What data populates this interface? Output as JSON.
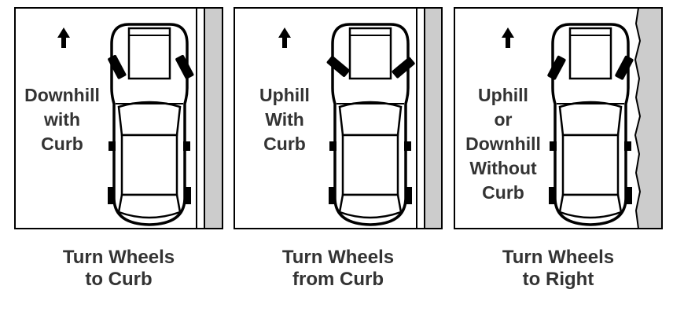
{
  "panels": [
    {
      "inner_lines": [
        "Downhill",
        "with",
        "Curb"
      ],
      "caption_lines": [
        "Turn Wheels",
        "to Curb"
      ],
      "wheel_direction": "toward-curb",
      "curb": "curb"
    },
    {
      "inner_lines": [
        "Uphill",
        "With",
        "Curb"
      ],
      "caption_lines": [
        "Turn Wheels",
        "from Curb"
      ],
      "wheel_direction": "away-from-curb",
      "curb": "curb"
    },
    {
      "inner_lines": [
        "Uphill",
        "or",
        "Downhill",
        "Without",
        "Curb"
      ],
      "caption_lines": [
        "Turn Wheels",
        "to Right"
      ],
      "wheel_direction": "right",
      "curb": "road-edge"
    }
  ],
  "colors": {
    "line": "#000000",
    "text": "#333333",
    "curb": "#cccccc",
    "background": "#ffffff"
  },
  "icons": [
    "up-arrow-icon",
    "car-icon"
  ]
}
